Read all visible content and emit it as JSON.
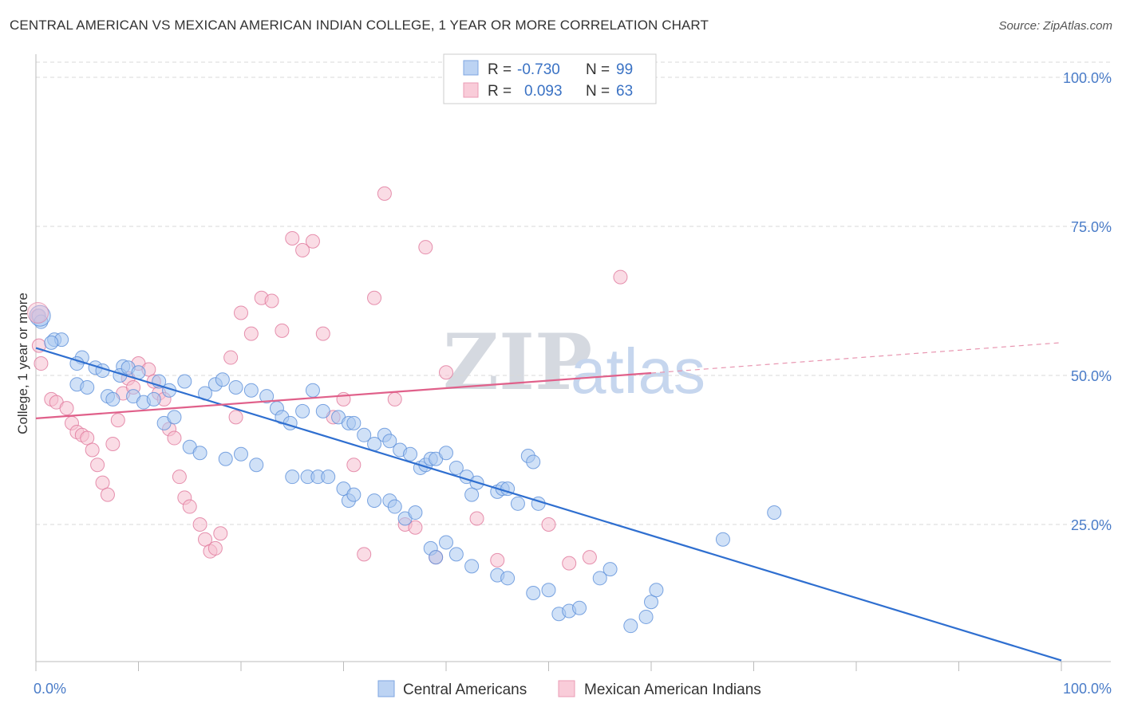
{
  "header": {
    "title": "CENTRAL AMERICAN VS MEXICAN AMERICAN INDIAN COLLEGE, 1 YEAR OR MORE CORRELATION CHART",
    "source": "Source: ZipAtlas.com"
  },
  "watermark": {
    "zip": "ZIP",
    "atlas": "atlas"
  },
  "legend": {
    "rows": [
      {
        "r_label": "R =",
        "r_value": "-0.730",
        "n_label": "N =",
        "n_value": "99",
        "color": "#8fb4ea"
      },
      {
        "r_label": "R =",
        "r_value": "0.093",
        "n_label": "N =",
        "n_value": "63",
        "color": "#f2a6bf"
      }
    ]
  },
  "chart_data": {
    "type": "scatter",
    "ylabel": "College, 1 year or more",
    "xlim": [
      0,
      100
    ],
    "ylim": [
      0,
      100
    ],
    "x_tick_labels": [
      "0.0%",
      "100.0%"
    ],
    "y_tick_labels": [
      "100.0%",
      "75.0%",
      "50.0%",
      "25.0%"
    ],
    "y_ticks": [
      100,
      75,
      50,
      25
    ],
    "grid": true,
    "legend_position": "top-center",
    "series": [
      {
        "name": "Central Americans",
        "color": "#5b8fd9",
        "fill": "#aac8f0",
        "trend": {
          "x0": 0,
          "y0": 54.6,
          "x1": 100,
          "y1": 2.2
        },
        "points": [
          [
            0.3,
            60
          ],
          [
            0.5,
            59
          ],
          [
            1.8,
            56
          ],
          [
            2.5,
            56
          ],
          [
            1.5,
            55.5
          ],
          [
            4.5,
            53
          ],
          [
            4,
            52
          ],
          [
            5.8,
            51.3
          ],
          [
            6.5,
            50.8
          ],
          [
            8.5,
            51.5
          ],
          [
            8.2,
            50
          ],
          [
            9,
            51.3
          ],
          [
            10,
            50.5
          ],
          [
            12,
            49
          ],
          [
            13,
            47.5
          ],
          [
            14.5,
            49
          ],
          [
            16.5,
            47
          ],
          [
            17.5,
            48.5
          ],
          [
            18.2,
            49.3
          ],
          [
            19.5,
            48
          ],
          [
            21,
            47.5
          ],
          [
            22.5,
            46.5
          ],
          [
            23.5,
            44.5
          ],
          [
            24,
            43
          ],
          [
            24.8,
            42
          ],
          [
            26,
            44
          ],
          [
            27,
            47.5
          ],
          [
            28,
            44
          ],
          [
            29.5,
            43
          ],
          [
            30.5,
            42
          ],
          [
            31,
            42
          ],
          [
            32,
            40
          ],
          [
            33,
            38.5
          ],
          [
            34,
            40
          ],
          [
            34.5,
            39
          ],
          [
            35.5,
            37.5
          ],
          [
            36.5,
            36.8
          ],
          [
            37.5,
            34.5
          ],
          [
            38,
            35
          ],
          [
            38.5,
            36
          ],
          [
            39,
            36
          ],
          [
            40,
            37
          ],
          [
            41,
            34.5
          ],
          [
            42,
            33
          ],
          [
            43,
            32
          ],
          [
            42.5,
            30
          ],
          [
            45,
            30.5
          ],
          [
            45.5,
            31
          ],
          [
            46,
            31
          ],
          [
            47,
            28.5
          ],
          [
            49,
            28.5
          ],
          [
            48,
            36.5
          ],
          [
            48.5,
            35.5
          ],
          [
            4,
            48.5
          ],
          [
            5,
            48
          ],
          [
            7,
            46.5
          ],
          [
            7.5,
            46
          ],
          [
            9.5,
            46.5
          ],
          [
            10.5,
            45.5
          ],
          [
            11.5,
            46
          ],
          [
            12.5,
            42
          ],
          [
            13.5,
            43
          ],
          [
            15,
            38
          ],
          [
            16,
            37
          ],
          [
            18.5,
            36
          ],
          [
            20,
            36.8
          ],
          [
            21.5,
            35
          ],
          [
            25,
            33
          ],
          [
            26.5,
            33
          ],
          [
            27.5,
            33
          ],
          [
            28.5,
            33
          ],
          [
            30,
            31
          ],
          [
            30.5,
            29
          ],
          [
            31,
            30
          ],
          [
            33,
            29
          ],
          [
            34.5,
            29
          ],
          [
            35,
            28
          ],
          [
            36,
            26
          ],
          [
            37,
            27
          ],
          [
            38.5,
            21
          ],
          [
            39,
            19.5
          ],
          [
            40,
            22
          ],
          [
            41,
            20
          ],
          [
            42.5,
            18
          ],
          [
            45,
            16.5
          ],
          [
            46,
            16
          ],
          [
            48.5,
            13.5
          ],
          [
            50,
            14
          ],
          [
            51,
            10
          ],
          [
            52,
            10.5
          ],
          [
            53,
            11
          ],
          [
            55,
            16
          ],
          [
            56,
            17.5
          ],
          [
            58,
            8
          ],
          [
            59.5,
            9.5
          ],
          [
            60,
            12
          ],
          [
            60.5,
            14
          ],
          [
            67,
            22.5
          ],
          [
            72,
            27
          ]
        ]
      },
      {
        "name": "Mexican American Indians",
        "color": "#e0779b",
        "fill": "#f6bfd0",
        "trend": {
          "x0": 0,
          "y0": 42.8,
          "x1": 60,
          "y1": 50.4
        },
        "trend_dashed": {
          "x0": 60,
          "y0": 50.4,
          "x1": 100,
          "y1": 55.5
        },
        "points": [
          [
            0.2,
            60
          ],
          [
            0.3,
            55
          ],
          [
            0.5,
            52
          ],
          [
            1.5,
            46
          ],
          [
            2,
            45.5
          ],
          [
            3,
            44.5
          ],
          [
            3.5,
            42
          ],
          [
            4,
            40.5
          ],
          [
            4.5,
            40
          ],
          [
            5,
            39.5
          ],
          [
            5.5,
            37.5
          ],
          [
            6,
            35
          ],
          [
            6.5,
            32
          ],
          [
            7,
            30
          ],
          [
            7.5,
            38.5
          ],
          [
            8,
            42.5
          ],
          [
            8.5,
            47
          ],
          [
            9,
            49.5
          ],
          [
            9.5,
            48
          ],
          [
            10,
            52
          ],
          [
            11,
            51
          ],
          [
            11.5,
            49
          ],
          [
            12,
            47
          ],
          [
            12.5,
            46
          ],
          [
            13,
            41
          ],
          [
            13.5,
            39.5
          ],
          [
            14,
            33
          ],
          [
            14.5,
            29.5
          ],
          [
            15,
            28
          ],
          [
            16,
            25
          ],
          [
            16.5,
            22.5
          ],
          [
            17,
            20.5
          ],
          [
            17.5,
            21
          ],
          [
            18,
            23.5
          ],
          [
            19,
            53
          ],
          [
            19.5,
            43
          ],
          [
            20,
            60.5
          ],
          [
            21,
            57
          ],
          [
            22,
            63
          ],
          [
            23,
            62.5
          ],
          [
            24,
            57.5
          ],
          [
            25,
            73
          ],
          [
            26,
            71
          ],
          [
            27,
            72.5
          ],
          [
            28,
            57
          ],
          [
            29,
            43
          ],
          [
            30,
            46
          ],
          [
            31,
            35
          ],
          [
            32,
            20
          ],
          [
            33,
            63
          ],
          [
            34,
            80.5
          ],
          [
            35,
            46
          ],
          [
            36,
            25
          ],
          [
            37,
            24.5
          ],
          [
            38,
            71.5
          ],
          [
            39,
            19.5
          ],
          [
            40,
            50.5
          ],
          [
            43,
            26
          ],
          [
            45,
            19
          ],
          [
            50,
            25
          ],
          [
            52,
            18.5
          ],
          [
            54,
            19.5
          ],
          [
            57,
            66.5
          ]
        ]
      }
    ]
  }
}
